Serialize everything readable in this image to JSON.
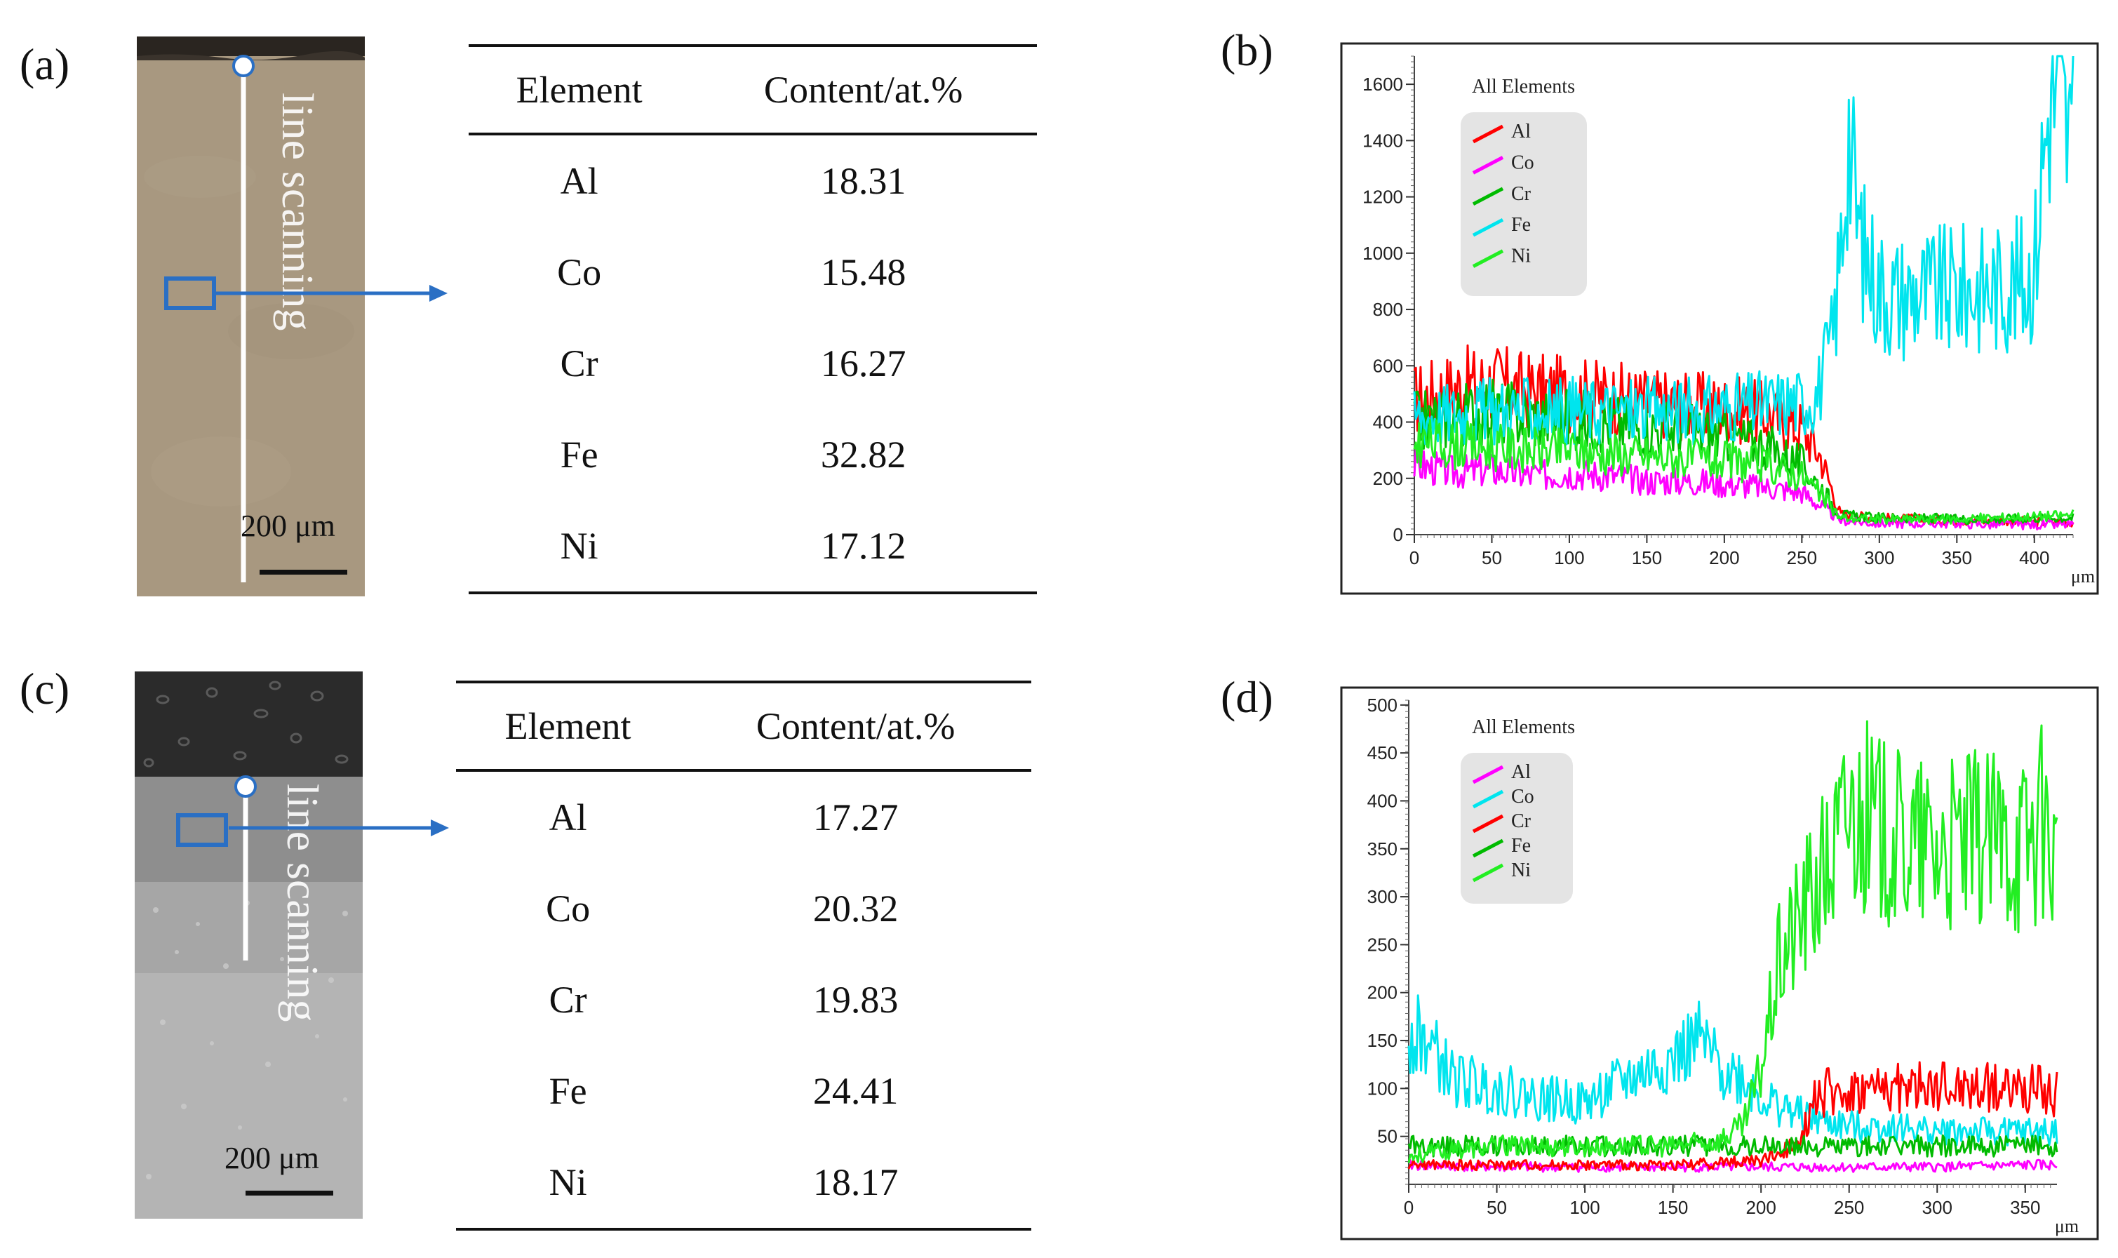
{
  "panels": [
    {
      "label": "(a)",
      "scan_label": "line scanning",
      "scale_bar": "200 μm",
      "table": {
        "headers": [
          "Element",
          "Content/at.%"
        ],
        "rows": [
          [
            "Al",
            "18.31"
          ],
          [
            "Co",
            "15.48"
          ],
          [
            "Cr",
            "16.27"
          ],
          [
            "Fe",
            "32.82"
          ],
          [
            "Ni",
            "17.12"
          ]
        ]
      }
    },
    {
      "label": "(c)",
      "scan_label": "line scanning",
      "scale_bar": "200 μm",
      "table": {
        "headers": [
          "Element",
          "Content/at.%"
        ],
        "rows": [
          [
            "Al",
            "17.27"
          ],
          [
            "Co",
            "20.32"
          ],
          [
            "Cr",
            "19.83"
          ],
          [
            "Fe",
            "24.41"
          ],
          [
            "Ni",
            "18.17"
          ]
        ]
      }
    }
  ],
  "chart_labels": [
    "(b)",
    "(d)"
  ],
  "chart_data": [
    {
      "type": "line",
      "title": "All Elements",
      "xlabel": "μm",
      "ylabel": "",
      "xlim": [
        0,
        425
      ],
      "ylim": [
        0,
        1700
      ],
      "xticks": [
        0,
        50,
        100,
        150,
        200,
        250,
        300,
        350,
        400
      ],
      "yticks": [
        0,
        200,
        400,
        600,
        800,
        1000,
        1200,
        1400,
        1600
      ],
      "legend_position": "top-left",
      "series": [
        {
          "name": "Al",
          "color": "#ff0000",
          "x": [
            0,
            25,
            50,
            75,
            100,
            125,
            150,
            175,
            200,
            225,
            250,
            262,
            275,
            300,
            325,
            350,
            375,
            400,
            425
          ],
          "y": [
            480,
            520,
            540,
            510,
            500,
            490,
            470,
            460,
            450,
            430,
            380,
            280,
            70,
            60,
            55,
            50,
            50,
            45,
            45
          ]
        },
        {
          "name": "Co",
          "color": "#ff00ff",
          "x": [
            0,
            25,
            50,
            75,
            100,
            125,
            150,
            175,
            200,
            225,
            250,
            275,
            300,
            325,
            350,
            375,
            400,
            425
          ],
          "y": [
            250,
            220,
            230,
            210,
            220,
            210,
            190,
            190,
            180,
            170,
            150,
            50,
            40,
            40,
            40,
            35,
            35,
            35
          ]
        },
        {
          "name": "Cr",
          "color": "#00bb00",
          "x": [
            0,
            25,
            50,
            75,
            100,
            125,
            150,
            175,
            200,
            225,
            250,
            262,
            275,
            300,
            325,
            350,
            375,
            400,
            425
          ],
          "y": [
            400,
            420,
            440,
            420,
            410,
            400,
            380,
            370,
            350,
            320,
            250,
            170,
            70,
            60,
            60,
            55,
            55,
            60,
            60
          ]
        },
        {
          "name": "Fe",
          "color": "#00e5ee",
          "x": [
            0,
            25,
            50,
            75,
            100,
            125,
            150,
            175,
            200,
            225,
            240,
            250,
            260,
            270,
            275,
            280,
            285,
            290,
            300,
            310,
            325,
            350,
            375,
            395,
            400,
            405,
            410,
            415,
            420,
            425
          ],
          "y": [
            420,
            430,
            440,
            440,
            440,
            440,
            440,
            440,
            450,
            460,
            470,
            470,
            500,
            700,
            1000,
            1450,
            1150,
            1000,
            880,
            850,
            860,
            870,
            880,
            900,
            950,
            1300,
            1550,
            1600,
            1450,
            1350
          ]
        },
        {
          "name": "Ni",
          "color": "#22ee22",
          "x": [
            0,
            25,
            50,
            75,
            100,
            125,
            150,
            175,
            200,
            225,
            250,
            262,
            275,
            300,
            325,
            350,
            375,
            400,
            425
          ],
          "y": [
            330,
            320,
            310,
            300,
            300,
            290,
            280,
            270,
            260,
            250,
            210,
            140,
            60,
            55,
            55,
            55,
            60,
            65,
            70
          ]
        }
      ]
    },
    {
      "type": "line",
      "title": "All Elements",
      "xlabel": "μm",
      "ylabel": "",
      "xlim": [
        0,
        368
      ],
      "ylim": [
        0,
        505
      ],
      "xticks": [
        0,
        50,
        100,
        150,
        200,
        250,
        300,
        350
      ],
      "yticks": [
        50,
        100,
        150,
        200,
        250,
        300,
        350,
        400,
        450,
        500
      ],
      "legend_position": "top-left",
      "series": [
        {
          "name": "Al",
          "color": "#ff00ff",
          "x": [
            0,
            50,
            100,
            150,
            200,
            250,
            300,
            350,
            368
          ],
          "y": [
            20,
            18,
            18,
            18,
            18,
            18,
            18,
            20,
            20
          ]
        },
        {
          "name": "Co",
          "color": "#00e5ee",
          "x": [
            0,
            10,
            25,
            50,
            75,
            100,
            125,
            150,
            165,
            175,
            190,
            200,
            225,
            250,
            275,
            300,
            325,
            350,
            368
          ],
          "y": [
            160,
            150,
            110,
            100,
            90,
            85,
            110,
            130,
            150,
            125,
            110,
            90,
            70,
            60,
            60,
            55,
            55,
            55,
            55
          ]
        },
        {
          "name": "Cr",
          "color": "#ff0000",
          "x": [
            0,
            50,
            100,
            150,
            200,
            215,
            225,
            230,
            250,
            275,
            300,
            325,
            350,
            368
          ],
          "y": [
            20,
            20,
            20,
            20,
            25,
            35,
            60,
            95,
            95,
            100,
            100,
            100,
            100,
            95
          ]
        },
        {
          "name": "Fe",
          "color": "#00bb00",
          "x": [
            0,
            50,
            100,
            150,
            200,
            250,
            300,
            350,
            368
          ],
          "y": [
            40,
            40,
            40,
            40,
            40,
            40,
            40,
            40,
            40
          ]
        },
        {
          "name": "Ni",
          "color": "#22ee22",
          "x": [
            0,
            25,
            50,
            75,
            100,
            125,
            150,
            175,
            190,
            200,
            210,
            225,
            240,
            250,
            260,
            275,
            300,
            325,
            350,
            360,
            368
          ],
          "y": [
            30,
            35,
            40,
            40,
            40,
            40,
            40,
            45,
            60,
            120,
            230,
            290,
            340,
            390,
            380,
            360,
            350,
            360,
            360,
            380,
            340
          ]
        }
      ]
    }
  ]
}
